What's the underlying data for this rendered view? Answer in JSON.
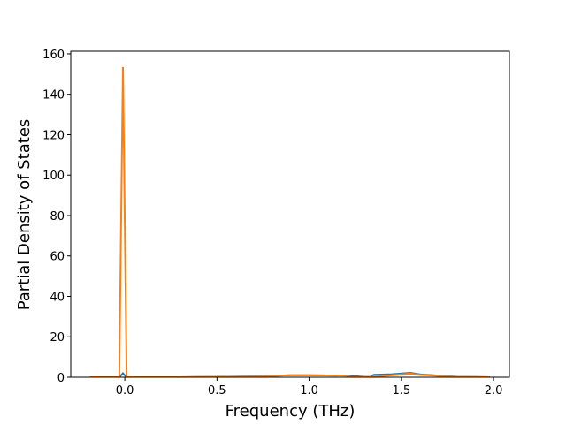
{
  "chart_data": {
    "type": "line",
    "xlabel": "Frequency (THz)",
    "ylabel": "Partial Density of States",
    "series": [
      {
        "color": "#1f77b4",
        "x": [
          -0.19,
          -0.03,
          -0.01,
          0.01,
          0.3,
          0.5,
          0.7,
          0.9,
          1.0,
          1.1,
          1.2,
          1.33,
          1.35,
          1.45,
          1.55,
          1.6,
          1.8,
          1.98
        ],
        "values": [
          0,
          0,
          2,
          0,
          0,
          0.2,
          0.4,
          1.0,
          1.0,
          0.9,
          0.8,
          0,
          1.2,
          1.5,
          2.2,
          1.4,
          0.2,
          0
        ]
      },
      {
        "color": "#ff7f0e",
        "x": [
          -0.19,
          -0.03,
          -0.01,
          0.01,
          0.3,
          0.5,
          0.7,
          0.9,
          1.0,
          1.1,
          1.2,
          1.23,
          1.35,
          1.45,
          1.55,
          1.6,
          1.8,
          1.98
        ],
        "values": [
          0,
          0,
          153.5,
          0,
          0,
          0.2,
          0.4,
          1.0,
          1.0,
          0.9,
          0.8,
          0,
          0.3,
          1.0,
          1.8,
          1.2,
          0.2,
          0
        ]
      }
    ],
    "xlim": [
      -0.293,
      2.086
    ],
    "xticks": [
      {
        "value": 0,
        "label": "0.0"
      },
      0.5,
      {
        "value": 1,
        "label": "1.0"
      },
      {
        "value": 1.5,
        "label": "1.5"
      },
      {
        "value": 2,
        "label": "2.0"
      }
    ],
    "ylim": [
      0,
      161.3
    ],
    "yticks": [
      0,
      20,
      40,
      60,
      80,
      100,
      120,
      140,
      160
    ]
  }
}
